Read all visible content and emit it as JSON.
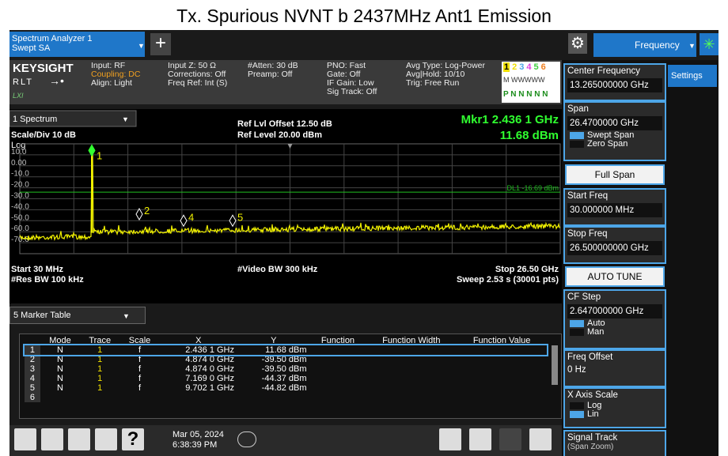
{
  "title": "Tx. Spurious NVNT b 2437MHz Ant1 Emission",
  "tab": {
    "line1": "Spectrum Analyzer 1",
    "line2": "Swept SA"
  },
  "menu": "Frequency",
  "info": {
    "brand": "KEYSIGHT",
    "rlt": "RLT",
    "lxi": "LXI",
    "col1": [
      "Input: RF",
      "Coupling: DC",
      "Align: Light"
    ],
    "col2": [
      "Input Z: 50 Ω",
      "Corrections: Off",
      "Freq Ref: Int (S)"
    ],
    "col3": [
      "#Atten: 30 dB",
      "Preamp: Off"
    ],
    "col4": [
      "PNO: Fast",
      "Gate: Off",
      "IF Gain: Low",
      "Sig Track: Off"
    ],
    "col5": [
      "Avg Type: Log-Power",
      "Avg|Hold: 10/10",
      "Trig: Free Run"
    ],
    "traces": [
      "1",
      "2",
      "3",
      "4",
      "5",
      "6"
    ],
    "trace_types": "M WWWWW",
    "detectors": "P N N N N N"
  },
  "plot": {
    "name": "1 Spectrum",
    "ref_offset": "Ref Lvl Offset 12.50 dB",
    "ref_level": "Ref Level 20.00 dBm",
    "marker_readout": "Mkr1  2.436 1 GHz",
    "marker_value": "11.68 dBm",
    "scale": "Scale/Div 10 dB",
    "log": "Log",
    "y_labels": [
      "10.0",
      "0.00",
      "-10.0",
      "-20.0",
      "-30.0",
      "-40.0",
      "-50.0",
      "-60.0",
      "-70.0"
    ],
    "display_line": "DL1 -16.69 dBm",
    "markers": [
      "1",
      "2",
      "4",
      "5"
    ],
    "start": "Start 30 MHz",
    "vbw": "#Video BW 300 kHz",
    "stop": "Stop 26.50 GHz",
    "rbw": "#Res BW 100 kHz",
    "sweep": "Sweep 2.53 s (30001 pts)"
  },
  "table": {
    "name": "5 Marker Table",
    "headers": [
      "Mode",
      "Trace",
      "Scale",
      "X",
      "Y",
      "Function",
      "Function Width",
      "Function Value"
    ],
    "rows": [
      {
        "num": "1",
        "mode": "N",
        "trace": "1",
        "scale": "f",
        "x": "2.436 1 GHz",
        "y": "11.68 dBm"
      },
      {
        "num": "2",
        "mode": "N",
        "trace": "1",
        "scale": "f",
        "x": "4.874 0 GHz",
        "y": "-39.50 dBm"
      },
      {
        "num": "3",
        "mode": "N",
        "trace": "1",
        "scale": "f",
        "x": "4.874 0 GHz",
        "y": "-39.50 dBm"
      },
      {
        "num": "4",
        "mode": "N",
        "trace": "1",
        "scale": "f",
        "x": "7.169 0 GHz",
        "y": "-44.37 dBm"
      },
      {
        "num": "5",
        "mode": "N",
        "trace": "1",
        "scale": "f",
        "x": "9.702 1 GHz",
        "y": "-44.82 dBm"
      },
      {
        "num": "6"
      }
    ]
  },
  "softkeys": {
    "center": {
      "label": "Center Frequency",
      "value": "13.265000000 GHz"
    },
    "span": {
      "label": "Span",
      "value": "26.4700000 GHz"
    },
    "span_mode": [
      "Swept Span",
      "Zero Span"
    ],
    "full_span": "Full Span",
    "start": {
      "label": "Start Freq",
      "value": "30.000000 MHz"
    },
    "stop": {
      "label": "Stop Freq",
      "value": "26.500000000 GHz"
    },
    "auto_tune": "AUTO TUNE",
    "cf_step": {
      "label": "CF Step",
      "value": "2.647000000 GHz"
    },
    "cf_mode": [
      "Auto",
      "Man"
    ],
    "offset": {
      "label": "Freq Offset",
      "value": "0 Hz"
    },
    "x_scale": {
      "label": "X Axis Scale",
      "options": [
        "Log",
        "Lin"
      ]
    },
    "signal_track": [
      "Signal Track",
      "(Span Zoom)"
    ]
  },
  "settings": "Settings",
  "taskbar": {
    "date": "Mar 05, 2024",
    "time": "6:38:39 PM"
  }
}
